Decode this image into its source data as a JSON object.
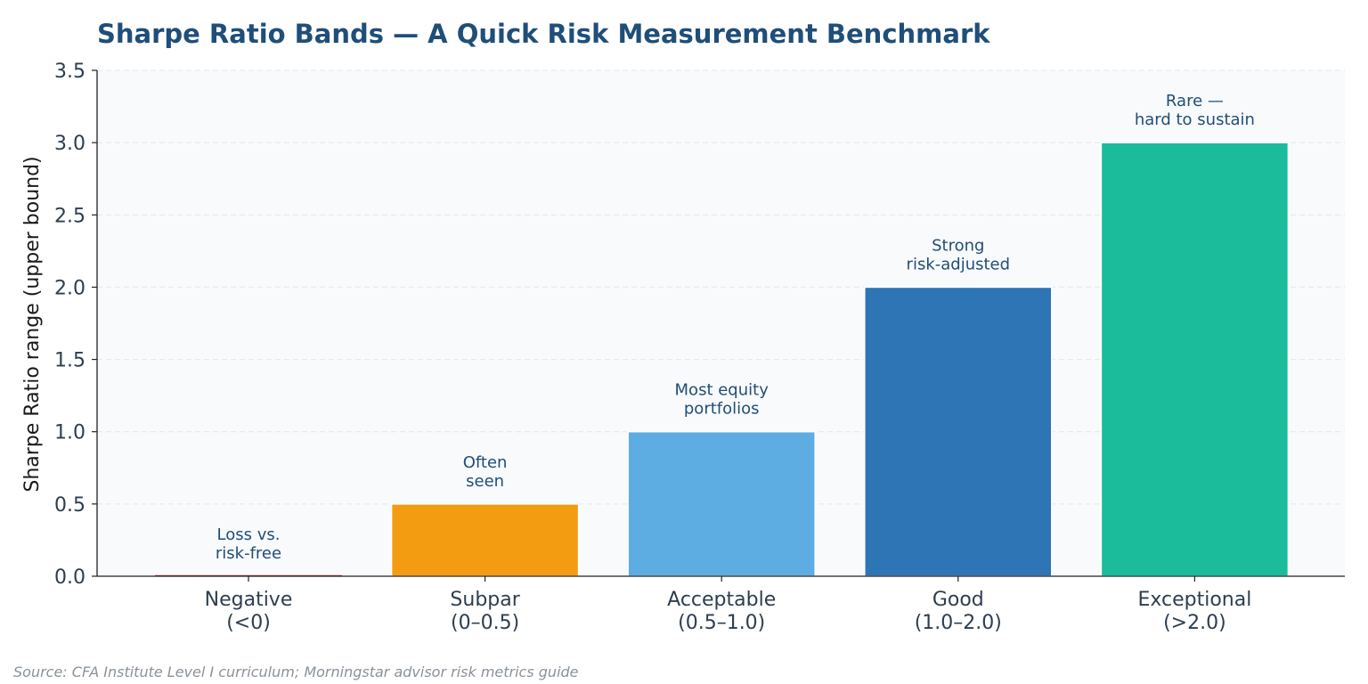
{
  "chart_data": {
    "type": "bar",
    "title": "Sharpe Ratio Bands — A Quick Risk Measurement Benchmark",
    "xlabel": "",
    "ylabel": "Sharpe Ratio range (upper bound)",
    "ylim": [
      0,
      3.5
    ],
    "yticks": [
      "0.0",
      "0.5",
      "1.0",
      "1.5",
      "2.0",
      "2.5",
      "3.0",
      "3.5"
    ],
    "grid": true,
    "categories": [
      [
        "Negative",
        "(<0)"
      ],
      [
        "Subpar",
        "(0–0.5)"
      ],
      [
        "Acceptable",
        "(0.5–1.0)"
      ],
      [
        "Good",
        "(1.0–2.0)"
      ],
      [
        "Exceptional",
        "(>2.0)"
      ]
    ],
    "values": [
      0,
      0.5,
      1.0,
      2.0,
      3.0
    ],
    "colors": [
      "#c0392b",
      "#f39c12",
      "#5dade2",
      "#2e75b6",
      "#1abc9c"
    ],
    "annotations": [
      [
        "Loss vs.",
        "risk-free"
      ],
      [
        "Often",
        "seen"
      ],
      [
        "Most equity",
        "portfolios"
      ],
      [
        "Strong",
        "risk-adjusted"
      ],
      [
        "Rare —",
        "hard to sustain"
      ]
    ],
    "source": "Source: CFA Institute Level I curriculum; Morningstar advisor risk metrics guide"
  }
}
